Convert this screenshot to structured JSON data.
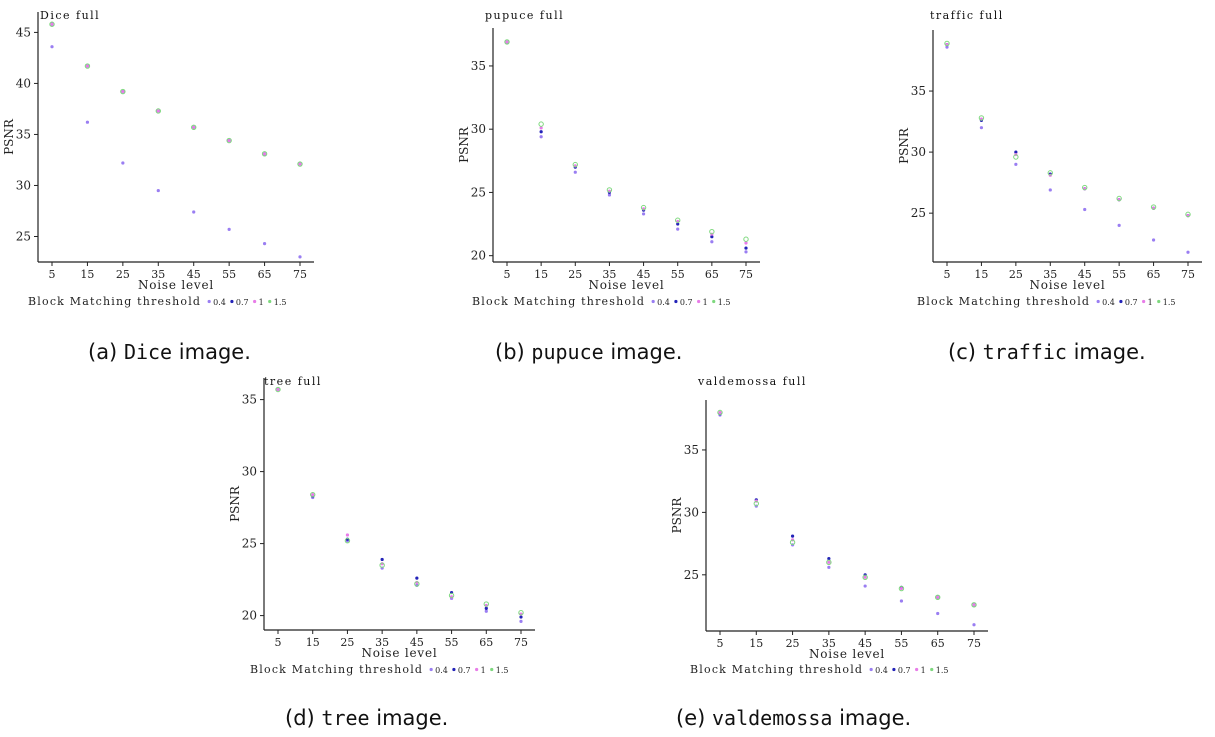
{
  "figure": {
    "x_axis_label": "Noise level",
    "y_axis_label": "PSNR",
    "legend_title": "Block Matching threshold",
    "legend_items": [
      "0.4",
      "0.7",
      "1",
      "1.5"
    ],
    "legend_colors": [
      "#9a7ef2",
      "#2323b8",
      "#e87ce8",
      "#7ed87e"
    ]
  },
  "captions": [
    {
      "prefix": "(a) ",
      "name": "Dice",
      "suffix": " image."
    },
    {
      "prefix": "(b) ",
      "name": "pupuce",
      "suffix": " image."
    },
    {
      "prefix": "(c) ",
      "name": "traffic",
      "suffix": " image."
    },
    {
      "prefix": "(d) ",
      "name": "tree",
      "suffix": " image."
    },
    {
      "prefix": "(e) ",
      "name": "valdemossa",
      "suffix": " image."
    }
  ],
  "chart_data": [
    {
      "type": "scatter",
      "title": "Dice full",
      "xlabel": "Noise level",
      "ylabel": "PSNR",
      "x": [
        5,
        15,
        25,
        35,
        45,
        55,
        65,
        75
      ],
      "x_tick_labels": [
        "5",
        "15",
        "25",
        "35",
        "45",
        "55",
        "65",
        "75"
      ],
      "y_ticks": [
        25,
        30,
        35,
        40,
        45
      ],
      "ylim": [
        22.5,
        47
      ],
      "series": [
        {
          "name": "0.4",
          "values": [
            43.6,
            36.2,
            32.2,
            29.5,
            27.4,
            25.7,
            24.3,
            23.0
          ]
        },
        {
          "name": "0.7",
          "values": [
            45.8,
            41.7,
            39.2,
            37.3,
            35.7,
            34.4,
            33.1,
            32.1
          ]
        },
        {
          "name": "1",
          "values": [
            45.8,
            41.7,
            39.2,
            37.3,
            35.7,
            34.4,
            33.1,
            32.1
          ]
        },
        {
          "name": "1.5",
          "values": [
            45.8,
            41.7,
            39.2,
            37.3,
            35.7,
            34.4,
            33.1,
            32.1
          ]
        }
      ],
      "legend": "bottom"
    },
    {
      "type": "scatter",
      "title": "pupuce full",
      "xlabel": "Noise level",
      "ylabel": "PSNR",
      "x": [
        5,
        15,
        25,
        35,
        45,
        55,
        65,
        75
      ],
      "x_tick_labels": [
        "5",
        "15",
        "25",
        "35",
        "45",
        "55",
        "65",
        "75"
      ],
      "y_ticks": [
        20,
        25,
        30,
        35
      ],
      "ylim": [
        19.5,
        38
      ],
      "series": [
        {
          "name": "0.4",
          "values": [
            36.9,
            29.4,
            26.6,
            24.8,
            23.3,
            22.1,
            21.1,
            20.3
          ]
        },
        {
          "name": "0.7",
          "values": [
            36.9,
            29.8,
            27.0,
            25.0,
            23.6,
            22.5,
            21.5,
            20.6
          ]
        },
        {
          "name": "1",
          "values": [
            36.9,
            30.1,
            27.1,
            25.1,
            23.7,
            22.7,
            21.7,
            21.0
          ]
        },
        {
          "name": "1.5",
          "values": [
            36.9,
            30.4,
            27.2,
            25.2,
            23.8,
            22.8,
            21.9,
            21.3
          ]
        }
      ],
      "legend": "bottom"
    },
    {
      "type": "scatter",
      "title": "traffic full",
      "xlabel": "Noise level",
      "ylabel": "PSNR",
      "x": [
        5,
        15,
        25,
        35,
        45,
        55,
        65,
        75
      ],
      "x_tick_labels": [
        "5",
        "15",
        "25",
        "35",
        "45",
        "55",
        "65",
        "75"
      ],
      "y_ticks": [
        25,
        30,
        35
      ],
      "ylim": [
        21,
        40
      ],
      "series": [
        {
          "name": "0.4",
          "values": [
            38.6,
            32.0,
            29.0,
            26.9,
            25.3,
            24.0,
            22.8,
            21.8
          ]
        },
        {
          "name": "0.7",
          "values": [
            38.8,
            32.6,
            30.0,
            28.2,
            27.0,
            26.1,
            25.4,
            24.8
          ]
        },
        {
          "name": "1",
          "values": [
            38.8,
            32.7,
            29.8,
            28.1,
            27.0,
            26.1,
            25.4,
            24.8
          ]
        },
        {
          "name": "1.5",
          "values": [
            38.9,
            32.8,
            29.6,
            28.3,
            27.1,
            26.2,
            25.5,
            24.9
          ]
        }
      ],
      "legend": "bottom"
    },
    {
      "type": "scatter",
      "title": "tree full",
      "xlabel": "Noise level",
      "ylabel": "PSNR",
      "x": [
        5,
        15,
        25,
        35,
        45,
        55,
        65,
        75
      ],
      "x_tick_labels": [
        "5",
        "15",
        "25",
        "35",
        "45",
        "55",
        "65",
        "75"
      ],
      "y_ticks": [
        20,
        25,
        30,
        35
      ],
      "ylim": [
        19,
        36.5
      ],
      "series": [
        {
          "name": "0.4",
          "values": [
            35.7,
            28.2,
            25.2,
            23.3,
            22.1,
            21.2,
            20.3,
            19.6
          ]
        },
        {
          "name": "0.7",
          "values": [
            35.7,
            28.3,
            25.3,
            23.9,
            22.6,
            21.6,
            20.5,
            19.9
          ]
        },
        {
          "name": "1",
          "values": [
            35.7,
            28.4,
            25.6,
            23.6,
            22.3,
            21.3,
            20.7,
            20.1
          ]
        },
        {
          "name": "1.5",
          "values": [
            35.7,
            28.4,
            25.2,
            23.5,
            22.2,
            21.4,
            20.8,
            20.2
          ]
        }
      ],
      "legend": "bottom"
    },
    {
      "type": "scatter",
      "title": "valdemossa full",
      "xlabel": "Noise level",
      "ylabel": "PSNR",
      "x": [
        5,
        15,
        25,
        35,
        45,
        55,
        65,
        75
      ],
      "x_tick_labels": [
        "5",
        "15",
        "25",
        "35",
        "45",
        "55",
        "65",
        "75"
      ],
      "y_ticks": [
        25,
        30,
        35
      ],
      "ylim": [
        20.5,
        39
      ],
      "series": [
        {
          "name": "0.4",
          "values": [
            37.8,
            30.5,
            27.4,
            25.6,
            24.1,
            22.9,
            21.9,
            21.0
          ]
        },
        {
          "name": "0.7",
          "values": [
            37.9,
            31.0,
            28.1,
            26.3,
            25.0,
            24.0,
            23.2,
            22.6
          ]
        },
        {
          "name": "1",
          "values": [
            38.0,
            30.9,
            27.8,
            26.0,
            24.8,
            23.9,
            23.2,
            22.6
          ]
        },
        {
          "name": "1.5",
          "values": [
            38.0,
            30.7,
            27.6,
            26.0,
            24.8,
            23.9,
            23.2,
            22.6
          ]
        }
      ],
      "legend": "bottom"
    }
  ]
}
